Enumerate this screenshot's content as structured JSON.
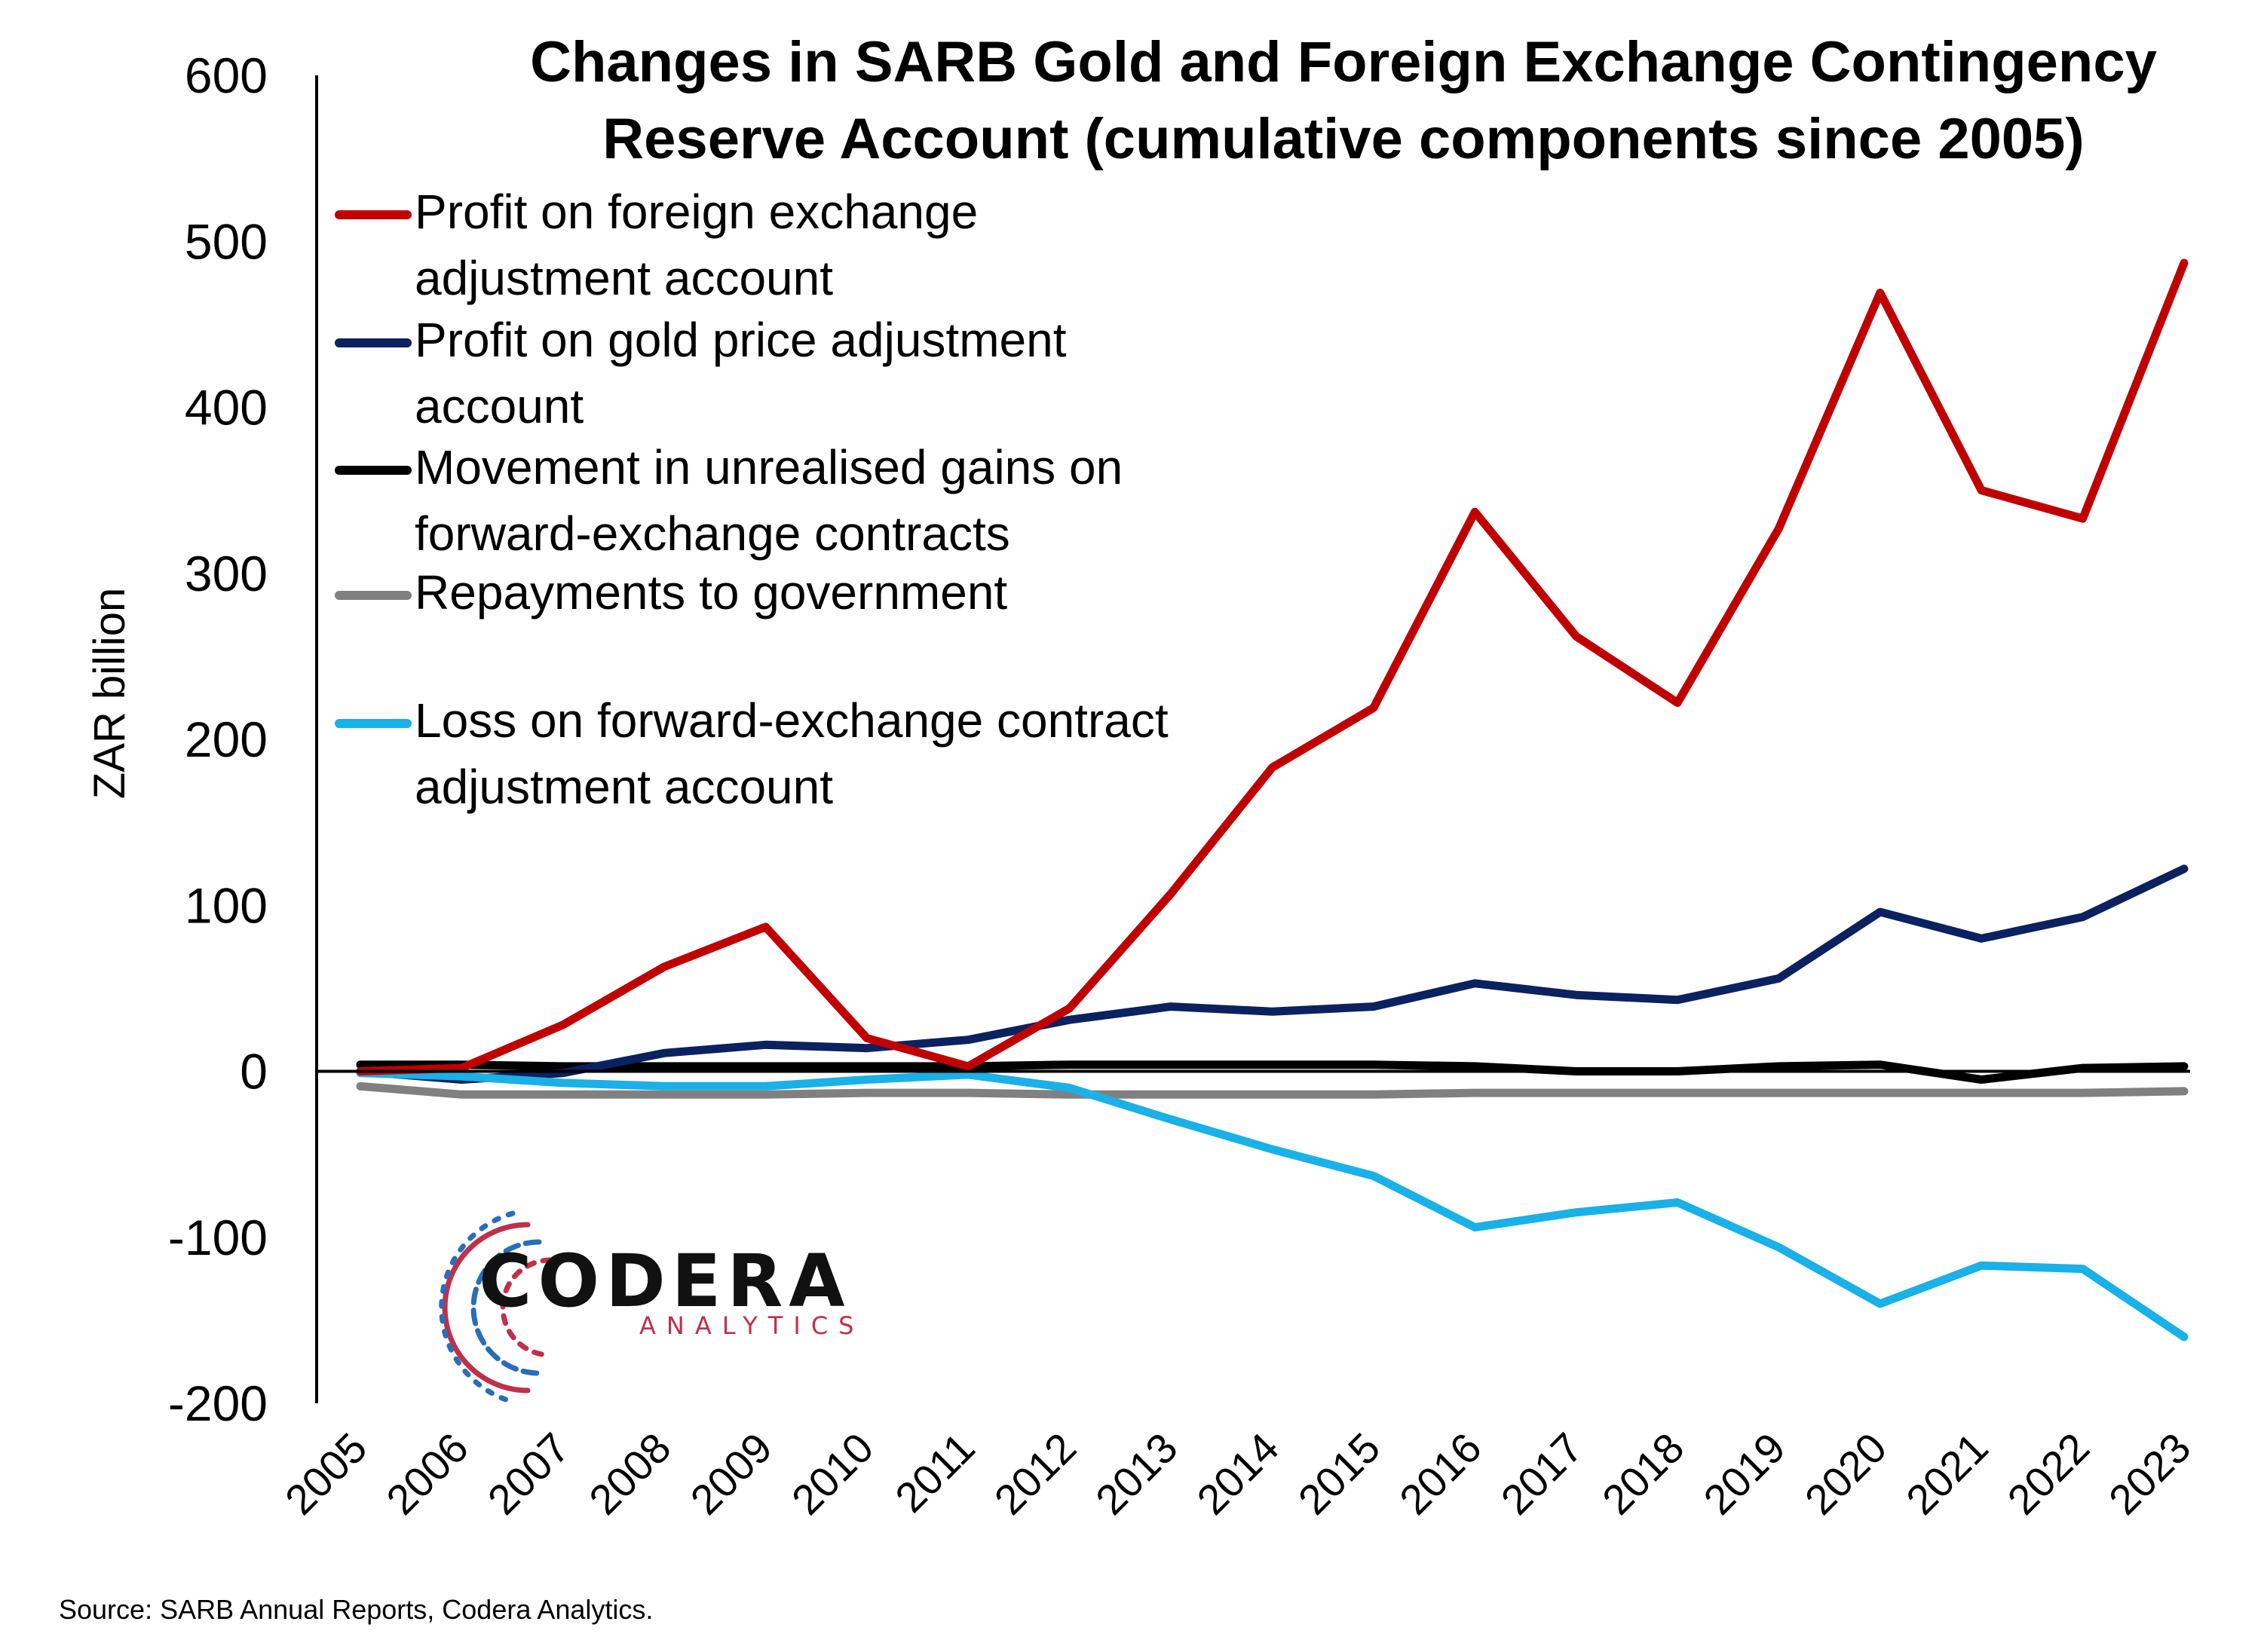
{
  "colors": {
    "profit_fx": "#C00000",
    "profit_gold": "#0B2160",
    "unrealised": "#000000",
    "repayments": "#808080",
    "loss_fec": "#1AB0E8",
    "logo_red": "#C0304A",
    "logo_blue": "#2A6DB8"
  },
  "logo": {
    "main": "CODERA",
    "sub": "ANALYTICS"
  },
  "source_text": "Source: SARB Annual Reports, Codera Analytics.",
  "chart_data": {
    "type": "line",
    "title_lines": [
      "Changes in SARB Gold and Foreign Exchange Contingency",
      "Reserve Account (cumulative components since 2005)"
    ],
    "xlabel": "",
    "ylabel": "ZAR billion",
    "ylim": [
      -200,
      600
    ],
    "yticks": [
      600,
      500,
      400,
      300,
      200,
      100,
      0,
      -100,
      -200
    ],
    "grid": false,
    "legend_position": "top-left",
    "x": [
      "2005",
      "2006",
      "2007",
      "2008",
      "2009",
      "2010",
      "2011",
      "2012",
      "2013",
      "2014",
      "2015",
      "2016",
      "2017",
      "2018",
      "2019",
      "2020",
      "2021",
      "2022",
      "2023"
    ],
    "series": [
      {
        "name": "Profit on foreign exchange adjustment account",
        "legend_lines": [
          "Profit on foreign exchange",
          "adjustment account"
        ],
        "color_key": "profit_fx",
        "values": [
          0,
          2,
          28,
          63,
          87,
          20,
          3,
          38,
          107,
          183,
          219,
          337,
          262,
          222,
          327,
          469,
          350,
          333,
          487
        ]
      },
      {
        "name": "Profit on gold price adjustment account",
        "legend_lines": [
          "Profit on gold price adjustment",
          "account"
        ],
        "color_key": "profit_gold",
        "values": [
          0,
          -5,
          -1,
          11,
          16,
          14,
          19,
          31,
          39,
          36,
          39,
          53,
          46,
          43,
          56,
          96,
          80,
          93,
          122
        ]
      },
      {
        "name": "Movement in unrealised gains on forward-exchange contracts",
        "legend_lines": [
          "Movement in unrealised gains on",
          "forward-exchange contracts"
        ],
        "color_key": "unrealised",
        "values": [
          4,
          4,
          3,
          3,
          3,
          3,
          3,
          4,
          4,
          4,
          4,
          3,
          0,
          0,
          3,
          4,
          -5,
          2,
          3
        ]
      },
      {
        "name": "Repayments to government",
        "legend_lines": [
          "Repayments to government"
        ],
        "color_key": "repayments",
        "values": [
          -9,
          -14,
          -14,
          -14,
          -14,
          -13,
          -13,
          -14,
          -14,
          -14,
          -14,
          -13,
          -13,
          -13,
          -13,
          -13,
          -13,
          -13,
          -12
        ]
      },
      {
        "name": "Loss on forward-exchange contract adjustment account",
        "legend_lines": [
          "Loss on forward-exchange contract",
          "adjustment account"
        ],
        "color_key": "loss_fec",
        "values": [
          -1,
          -3,
          -7,
          -9,
          -9,
          -5,
          -2,
          -10,
          -29,
          -47,
          -63,
          -94,
          -85,
          -79,
          -106,
          -140,
          -117,
          -119,
          -160
        ]
      }
    ]
  }
}
